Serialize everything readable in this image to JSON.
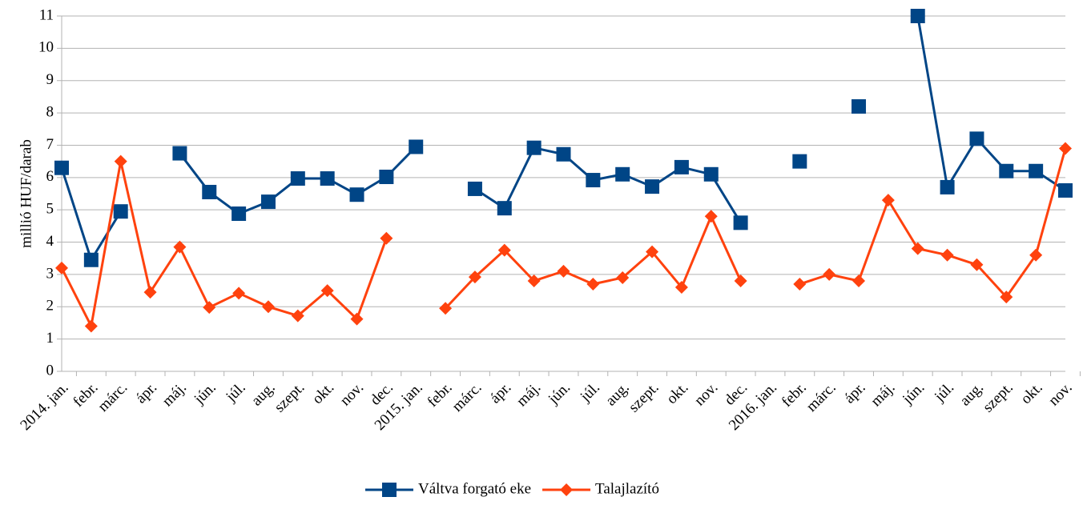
{
  "chart_data": {
    "type": "line",
    "ylabel": "millió HUF/darab",
    "categories": [
      "2014. jan.",
      "febr.",
      "márc.",
      "ápr.",
      "máj.",
      "jún.",
      "júl.",
      "aug.",
      "szept.",
      "okt.",
      "nov.",
      "dec.",
      "2015. jan.",
      "febr.",
      "márc.",
      "ápr.",
      "máj.",
      "jún.",
      "júl.",
      "aug.",
      "szept.",
      "okt.",
      "nov.",
      "dec.",
      "2016. jan.",
      "febr.",
      "márc.",
      "ápr.",
      "máj.",
      "jún.",
      "júl.",
      "aug.",
      "szept.",
      "okt.",
      "nov."
    ],
    "series": [
      {
        "name": "Váltva forgató eke",
        "color": "#004586",
        "marker": "square",
        "values": [
          6.3,
          3.45,
          4.95,
          null,
          6.75,
          5.55,
          4.88,
          5.25,
          5.97,
          5.97,
          5.47,
          6.02,
          6.95,
          null,
          5.65,
          5.05,
          6.92,
          6.72,
          5.92,
          6.1,
          5.72,
          6.32,
          6.1,
          4.6,
          null,
          6.5,
          null,
          8.2,
          null,
          11,
          5.7,
          7.2,
          6.2,
          6.2,
          5.6
        ]
      },
      {
        "name": "Talajlazító",
        "color": "#ff420e",
        "marker": "diamond",
        "values": [
          3.2,
          1.4,
          6.5,
          2.45,
          3.85,
          1.98,
          2.42,
          2.0,
          1.72,
          2.5,
          1.62,
          4.12,
          null,
          1.95,
          2.92,
          3.75,
          2.8,
          3.1,
          2.7,
          2.9,
          3.7,
          2.6,
          4.8,
          2.8,
          null,
          2.7,
          3.0,
          2.8,
          5.3,
          3.8,
          3.6,
          3.3,
          2.3,
          3.6,
          6.9
        ]
      }
    ],
    "ylim": [
      0,
      11
    ],
    "yticks": [
      0,
      1,
      2,
      3,
      4,
      5,
      6,
      7,
      8,
      9,
      10,
      11
    ],
    "grid": true,
    "legend": "bottom"
  }
}
